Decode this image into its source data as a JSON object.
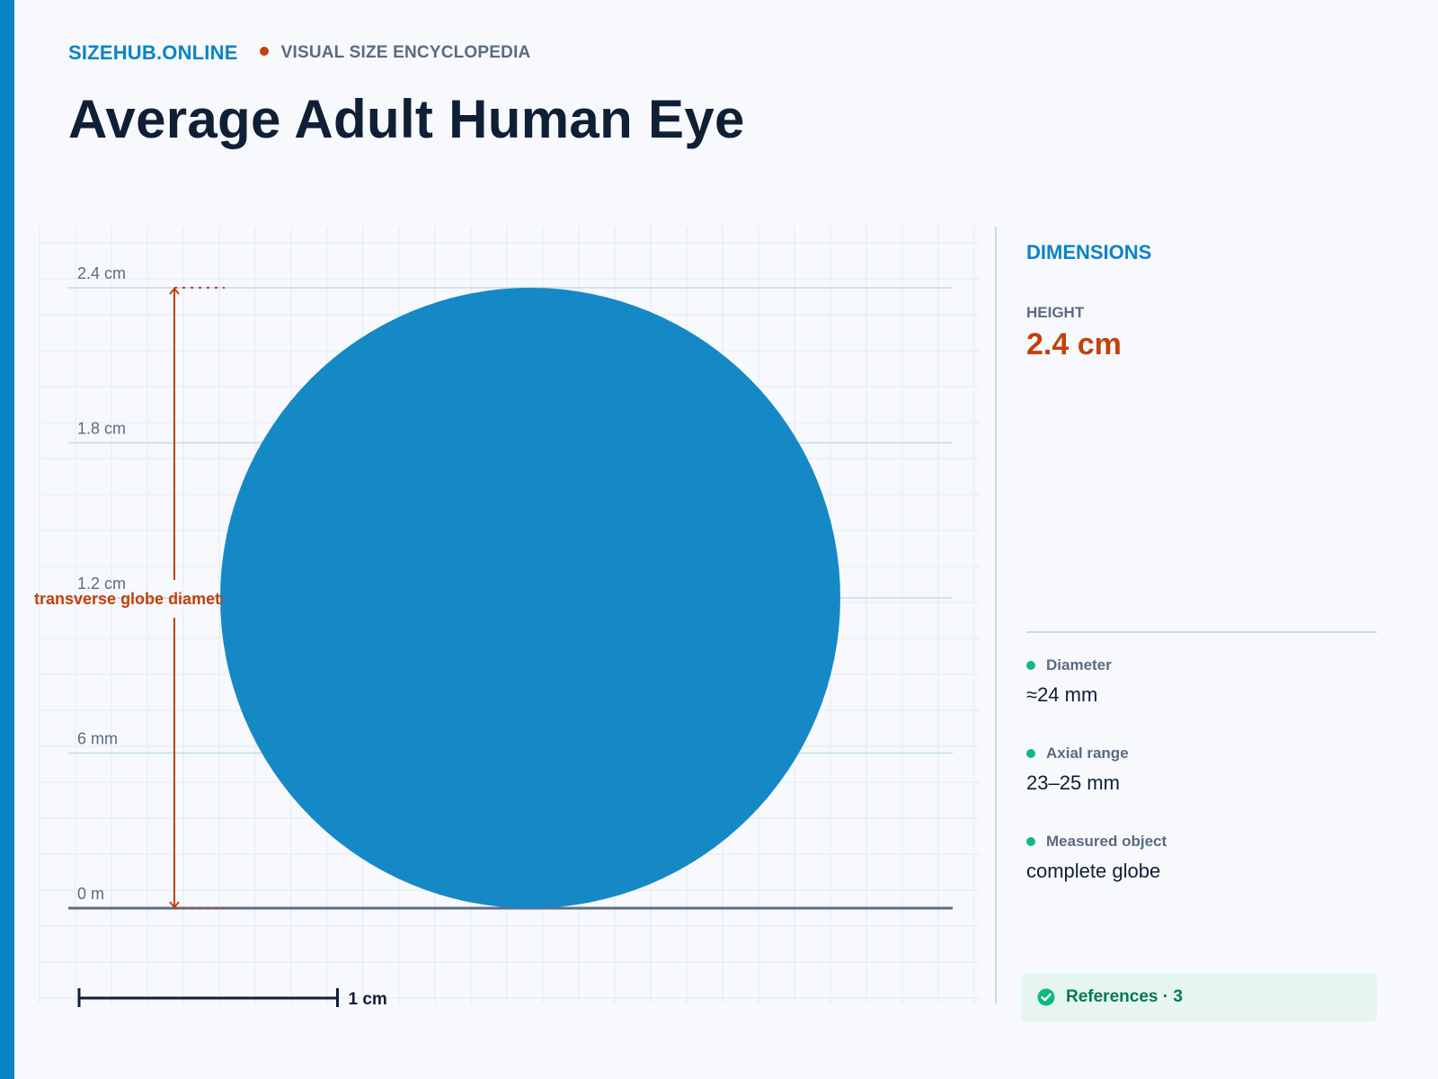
{
  "header": {
    "brand": "SIZEHUB.ONLINE",
    "tagline": "VISUAL SIZE ENCYCLOPEDIA",
    "title": "Average Adult Human Eye"
  },
  "diagram": {
    "object_height_cm": 2.4,
    "object_width_cm": 2.4,
    "axis_max_cm": 2.4,
    "tick_labels": [
      {
        "value_cm": 2.4,
        "label": "2.4 cm"
      },
      {
        "value_cm": 1.8,
        "label": "1.8 cm"
      },
      {
        "value_cm": 1.2,
        "label": "1.2 cm"
      },
      {
        "value_cm": 0.6,
        "label": "6 mm"
      },
      {
        "value_cm": 0,
        "label": "0 m"
      }
    ],
    "dimension_label": "transverse globe diameter",
    "scale_bar": {
      "length_cm": 1,
      "label": "1 cm"
    },
    "colors": {
      "object": "#1589c6",
      "dimension": "#c2410c",
      "grid": "#e3eaf0",
      "tick_line": "#c2dbe8",
      "baseline": "#5e6e82"
    }
  },
  "panel": {
    "title": "DIMENSIONS",
    "height_label": "HEIGHT",
    "height_value": "2.4 cm",
    "specs": [
      {
        "label": "Diameter",
        "value": "≈24 mm"
      },
      {
        "label": "Axial range",
        "value": "23–25 mm"
      },
      {
        "label": "Measured object",
        "value": "complete globe"
      }
    ],
    "references": "References · 3"
  }
}
